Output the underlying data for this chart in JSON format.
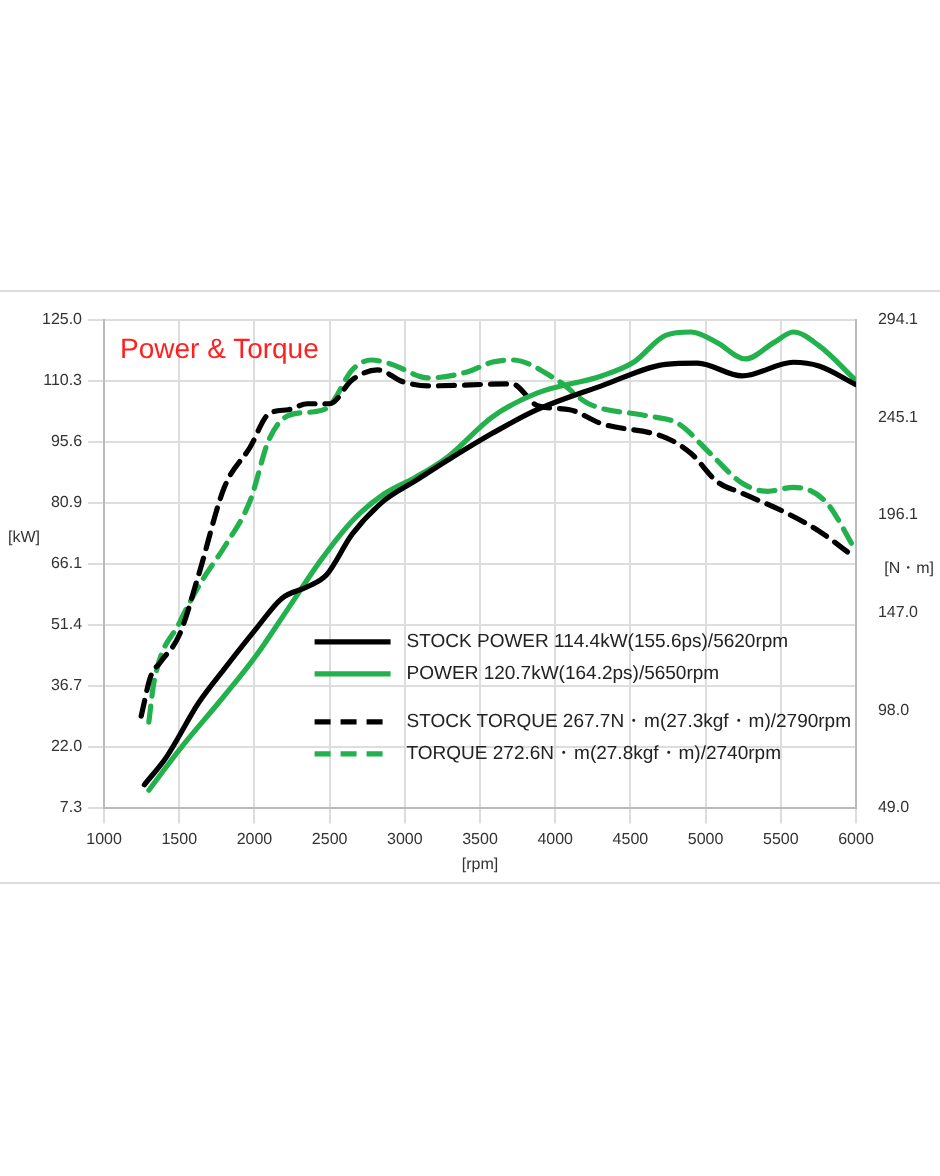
{
  "chart_data": {
    "type": "line",
    "title": "Power & Torque",
    "xlabel": "[rpm]",
    "ylabel": "[kW]",
    "y2label": "[N・m]",
    "xlim": [
      1000,
      6000
    ],
    "xticks": [
      1000,
      1500,
      2000,
      2500,
      3000,
      3500,
      4000,
      4500,
      5000,
      5500,
      6000
    ],
    "ylim": [
      7.3,
      125
    ],
    "yticks": [
      7.3,
      {
        "value": 22,
        "label": "22.0"
      },
      36.7,
      51.4,
      66.1,
      80.9,
      95.6,
      110.3,
      {
        "value": 125,
        "label": "125.0"
      }
    ],
    "y2lim": [
      49,
      294.1
    ],
    "y2ticks": [
      {
        "value": 49,
        "label": "49.0"
      },
      {
        "value": 98,
        "label": "98.0"
      },
      {
        "value": 147,
        "label": "147.0"
      },
      196.1,
      245.1,
      294.1
    ],
    "grid": true,
    "legend": "bottom right",
    "series": [
      {
        "name": "STOCK POWER 114.4kW(155.6ps)/5620rpm",
        "color": "#000000",
        "line_style": "solid",
        "x": [
          1268,
          1417,
          1629,
          1800,
          2012,
          2182,
          2352,
          2480,
          2650,
          2862,
          3075,
          3287,
          3585,
          3883,
          4308,
          4734,
          4946,
          5244,
          5584,
          5754,
          6000
        ],
        "values": [
          12.8,
          19.6,
          32.6,
          40.8,
          50.5,
          57.8,
          60.6,
          63.5,
          73.3,
          81.4,
          86.3,
          91.2,
          97.7,
          103.4,
          109.1,
          114.3,
          114.6,
          111.5,
          114.8,
          113.9,
          109.4
        ]
      },
      {
        "name": "POWER 120.7kW(164.2ps)/5650rpm",
        "color": "#22b14c",
        "line_style": "solid",
        "x": [
          1298,
          1502,
          1800,
          2012,
          2225,
          2437,
          2650,
          2862,
          3075,
          3287,
          3585,
          3883,
          4308,
          4521,
          4734,
          4904,
          5074,
          5265,
          5456,
          5584,
          5754,
          6000
        ],
        "values": [
          11.5,
          21.3,
          34.3,
          44.0,
          55.4,
          66.8,
          76.5,
          83.0,
          87.1,
          92.0,
          101.7,
          107.4,
          111.5,
          114.8,
          121.3,
          122.1,
          119.6,
          115.6,
          119.6,
          122.1,
          118.8,
          110.4
        ]
      },
      {
        "name": "STOCK TORQUE 267.7N・m(27.3kgf・m)/2790rpm",
        "color": "#000000",
        "line_style": "dashed",
        "axis": "y2",
        "x": [
          1247,
          1310,
          1374,
          1502,
          1629,
          1800,
          1970,
          2097,
          2225,
          2352,
          2501,
          2650,
          2820,
          2990,
          3160,
          3713,
          3883,
          4096,
          4308,
          4734,
          4904,
          5074,
          5244,
          5541,
          5754,
          5988
        ],
        "values": [
          95,
          115,
          122,
          136,
          166,
          210,
          230,
          247,
          249,
          252,
          252,
          264,
          269,
          263,
          261,
          262,
          251,
          249,
          242,
          235,
          227,
          213,
          207,
          197,
          188,
          175
        ]
      },
      {
        "name": "TORQUE 272.6N・m(27.8kgf・m)/2740rpm",
        "color": "#22b14c",
        "line_style": "dashed",
        "axis": "y2",
        "x": [
          1298,
          1332,
          1502,
          1651,
          1800,
          1970,
          2097,
          2225,
          2395,
          2501,
          2650,
          2777,
          2905,
          3160,
          3415,
          3585,
          3713,
          4011,
          4223,
          4606,
          4819,
          5031,
          5244,
          5414,
          5584,
          5796,
          6000
        ],
        "values": [
          92,
          112,
          142,
          163,
          180,
          203,
          234,
          246,
          248,
          251,
          269,
          274,
          272,
          265,
          268,
          273,
          274,
          264,
          252,
          246,
          242,
          227,
          212,
          208,
          210,
          203,
          178
        ]
      }
    ]
  }
}
